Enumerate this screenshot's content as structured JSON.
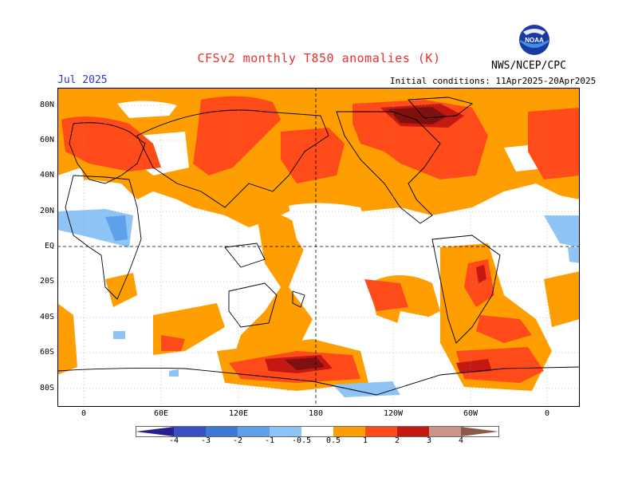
{
  "map": {
    "title": "CFSv2 monthly T850 anomalies (K)",
    "agency": "NWS/NCEP/CPC",
    "valid_month": "Jul 2025",
    "initial_conditions": "Initial conditions: 11Apr2025-20Apr2025",
    "logo_text": "NOAA",
    "lat_labels": [
      "80N",
      "60N",
      "40N",
      "20N",
      "EQ",
      "20S",
      "40S",
      "60S",
      "80S"
    ],
    "lon_labels": [
      "0",
      "60E",
      "120E",
      "180",
      "120W",
      "60W",
      "0"
    ],
    "colorbar": {
      "labels": [
        "-4",
        "-3",
        "-2",
        "-1",
        "-0.5",
        "0.5",
        "1",
        "2",
        "3",
        "4"
      ],
      "colors": [
        "#2a1f8f",
        "#3a4fc4",
        "#3f78d6",
        "#5fa0ea",
        "#8ec4f6",
        "#ffffff",
        "#ff9e00",
        "#ff4a1a",
        "#c41812",
        "#7e1010",
        "#c8968a",
        "#8a5a4a"
      ]
    },
    "palette": {
      "weak_warm": "#ff9e00",
      "warm": "#ff4a1a",
      "strong_warm": "#c41812",
      "very_strong_warm": "#7e1010",
      "weak_cool": "#8ec4f6",
      "cool": "#5fa0ea",
      "land": "#000000",
      "grid": "#9a9a9a"
    }
  }
}
